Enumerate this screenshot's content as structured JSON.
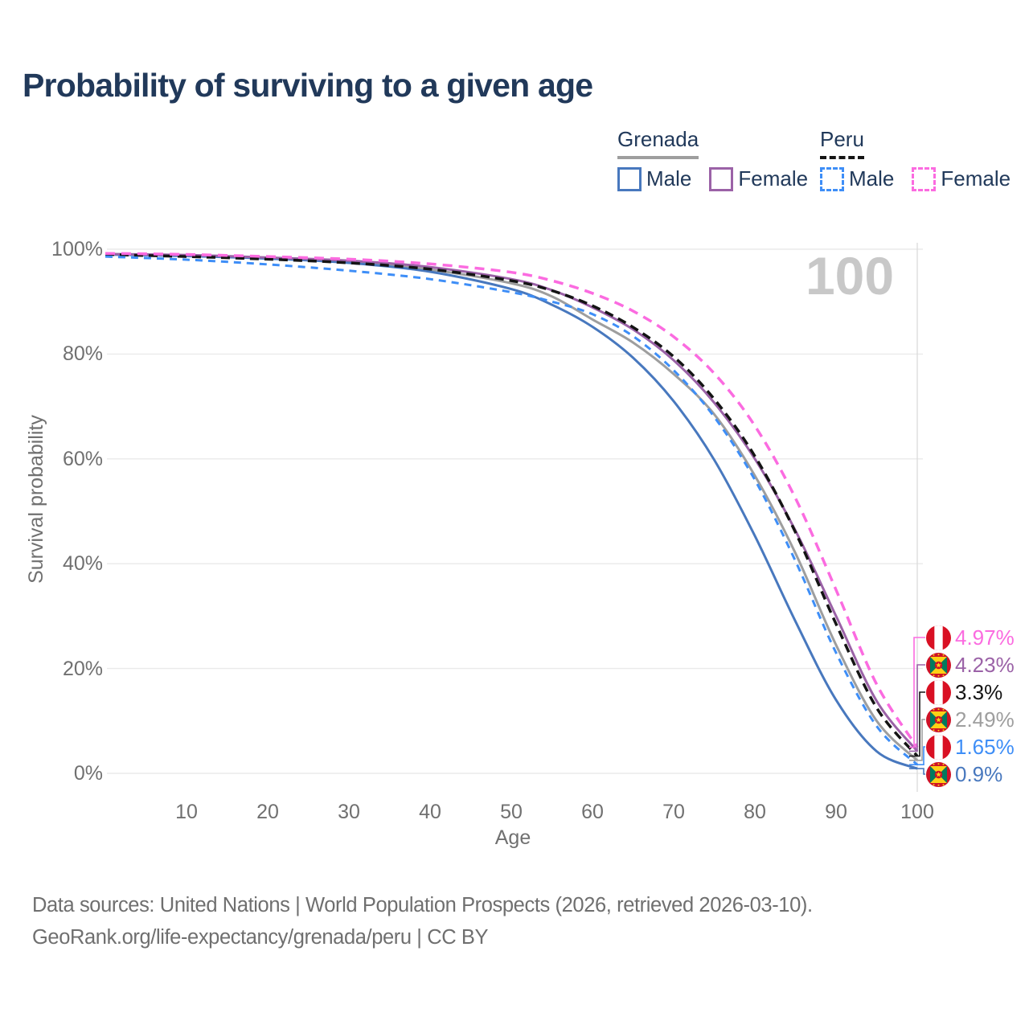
{
  "title": "Probability of surviving to a given age",
  "watermark": "100",
  "legend": {
    "groups": [
      {
        "name": "Grenada",
        "underline": {
          "color": "#9E9E9E",
          "style": "solid"
        },
        "items": [
          {
            "label": "Male",
            "color": "#4878BE",
            "style": "solid"
          },
          {
            "label": "Female",
            "color": "#9B62A7",
            "style": "solid"
          }
        ]
      },
      {
        "name": "Peru",
        "underline": {
          "color": "#141414",
          "style": "dashed"
        },
        "items": [
          {
            "label": "Male",
            "color": "#3E8EF7",
            "style": "dashed"
          },
          {
            "label": "Female",
            "color": "#FB6BE0",
            "style": "dashed"
          }
        ]
      }
    ]
  },
  "y_axis": {
    "label": "Survival probability",
    "ticks": [
      "100%",
      "80%",
      "60%",
      "40%",
      "20%",
      "0%"
    ]
  },
  "x_axis": {
    "label": "Age",
    "ticks": [
      "10",
      "20",
      "30",
      "40",
      "50",
      "60",
      "70",
      "80",
      "90",
      "100"
    ]
  },
  "source": {
    "line1": "Data sources: United Nations | World Population Prospects (2026, retrieved 2026-03-10).",
    "line2": "GeoRank.org/life-expectancy/grenada/peru | CC BY"
  },
  "chart_data": {
    "type": "line",
    "title": "Probability of surviving to a given age",
    "xlabel": "Age",
    "ylabel": "Survival probability",
    "xlim": [
      0,
      100
    ],
    "ylim": [
      0,
      100
    ],
    "x_ticks": [
      10,
      20,
      30,
      40,
      50,
      60,
      70,
      80,
      90,
      100
    ],
    "y_ticks_pct": [
      100,
      80,
      60,
      40,
      20,
      0
    ],
    "grid": "horizontal",
    "highlighted_age": 100,
    "ages": [
      0,
      10,
      20,
      30,
      40,
      50,
      55,
      60,
      65,
      70,
      75,
      80,
      85,
      90,
      95,
      100
    ],
    "series": [
      {
        "name": "Peru Female",
        "country": "Peru",
        "sex": "Female",
        "style": "dashed",
        "color": "#FB6BE0",
        "end_value_label": "4.97%",
        "values": [
          99.2,
          99.0,
          98.6,
          98.1,
          97.2,
          95.6,
          94.0,
          91.6,
          88.2,
          83.3,
          76.3,
          66.3,
          52.5,
          35.0,
          17.0,
          4.97
        ]
      },
      {
        "name": "Grenada Female",
        "country": "Grenada",
        "sex": "Female",
        "style": "solid",
        "color": "#9B62A7",
        "end_value_label": "4.23%",
        "values": [
          99.1,
          98.9,
          98.4,
          97.8,
          96.6,
          94.3,
          92.2,
          88.9,
          84.7,
          78.8,
          70.7,
          60.0,
          46.3,
          30.0,
          13.8,
          4.23
        ]
      },
      {
        "name": "Peru",
        "country": "Peru",
        "sex": "Both",
        "style": "dashed",
        "color": "#141414",
        "end_value_label": "3.3%",
        "values": [
          99.0,
          98.6,
          98.1,
          97.4,
          96.2,
          94.0,
          92.1,
          89.2,
          85.1,
          79.5,
          71.4,
          60.5,
          46.0,
          28.5,
          12.5,
          3.3
        ]
      },
      {
        "name": "Grenada",
        "country": "Grenada",
        "sex": "Both",
        "style": "solid",
        "color": "#9E9E9E",
        "end_value_label": "2.49%",
        "values": [
          99.0,
          98.75,
          98.3,
          97.5,
          96.1,
          93.5,
          91.0,
          86.6,
          82.2,
          76.2,
          68.5,
          56.8,
          42.0,
          24.5,
          10.0,
          2.49
        ]
      },
      {
        "name": "Peru Male",
        "country": "Peru",
        "sex": "Male",
        "style": "dashed",
        "color": "#3E8EF7",
        "end_value_label": "1.65%",
        "values": [
          98.6,
          98.0,
          97.1,
          95.9,
          94.3,
          91.8,
          90.0,
          87.6,
          83.4,
          76.9,
          68.0,
          56.0,
          40.5,
          23.0,
          9.0,
          1.65
        ]
      },
      {
        "name": "Grenada Male",
        "country": "Grenada",
        "sex": "Male",
        "style": "solid",
        "color": "#4878BE",
        "end_value_label": "0.9%",
        "values": [
          99.0,
          98.7,
          98.2,
          97.4,
          95.7,
          92.4,
          89.4,
          85.2,
          79.3,
          71.0,
          59.8,
          45.3,
          29.0,
          14.0,
          4.2,
          0.9
        ]
      }
    ]
  }
}
